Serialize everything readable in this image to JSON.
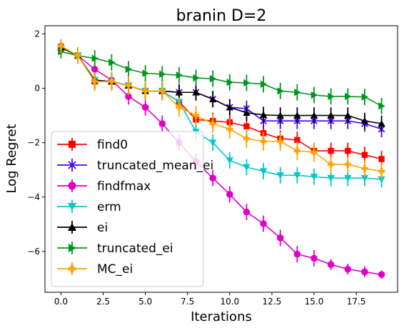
{
  "chart_data": {
    "type": "line",
    "title": "branin D=2",
    "xlabel": "Iterations",
    "ylabel": "Log Regret",
    "xlim": [
      -0.95,
      19.95
    ],
    "ylim": [
      -7.5,
      2.3
    ],
    "xticks": [
      0,
      2.5,
      5,
      7.5,
      10,
      12.5,
      15,
      17.5
    ],
    "xtick_labels": [
      "0.0",
      "2.5",
      "5.0",
      "7.5",
      "10.0",
      "12.5",
      "15.0",
      "17.5"
    ],
    "yticks": [
      2,
      0,
      -2,
      -4,
      -6
    ],
    "ytick_labels": [
      "2",
      "0",
      "−2",
      "−4",
      "−6"
    ],
    "grid": false,
    "legend_position": "lower-left",
    "x": [
      0,
      1,
      2,
      3,
      4,
      5,
      6,
      7,
      8,
      9,
      10,
      11,
      12,
      13,
      14,
      15,
      16,
      17,
      18,
      19
    ],
    "series": [
      {
        "name": "find0",
        "color": "#ff0000",
        "marker": "square",
        "values": [
          1.5,
          1.2,
          0.25,
          0.25,
          0.1,
          -0.1,
          -0.1,
          -0.5,
          -1.15,
          -1.2,
          -1.25,
          -1.4,
          -1.65,
          -1.85,
          -1.9,
          -2.3,
          -2.3,
          -2.3,
          -2.45,
          -2.6
        ],
        "errors": [
          0.25,
          0.3,
          0.3,
          0.3,
          0.3,
          0.3,
          0.3,
          0.3,
          0.3,
          0.3,
          0.3,
          0.3,
          0.3,
          0.3,
          0.3,
          0.3,
          0.3,
          0.3,
          0.3,
          0.3
        ]
      },
      {
        "name": "truncated_mean_ei",
        "color": "#4b00ff",
        "marker": "x",
        "values": [
          1.5,
          1.2,
          0.3,
          0.25,
          0.1,
          -0.1,
          -0.1,
          -0.15,
          -0.15,
          -0.4,
          -0.7,
          -0.75,
          -1.2,
          -1.2,
          -1.2,
          -1.2,
          -1.2,
          -1.2,
          -1.3,
          -1.5
        ],
        "errors": [
          0.25,
          0.3,
          0.3,
          0.3,
          0.3,
          0.3,
          0.3,
          0.3,
          0.3,
          0.3,
          0.3,
          0.3,
          0.3,
          0.3,
          0.3,
          0.3,
          0.3,
          0.3,
          0.3,
          0.3
        ]
      },
      {
        "name": "findfmax",
        "color": "#e000c8",
        "marker": "circle",
        "values": [
          1.55,
          1.2,
          0.7,
          0.3,
          -0.3,
          -0.7,
          -1.3,
          -2.0,
          -2.7,
          -3.3,
          -3.9,
          -4.55,
          -4.98,
          -5.5,
          -6.1,
          -6.25,
          -6.48,
          -6.65,
          -6.75,
          -6.85
        ],
        "errors": [
          0.25,
          0.3,
          0.3,
          0.3,
          0.3,
          0.3,
          0.3,
          0.3,
          0.3,
          0.3,
          0.3,
          0.3,
          0.3,
          0.3,
          0.3,
          0.3,
          0.2,
          0.2,
          0.2,
          0.15
        ]
      },
      {
        "name": "erm",
        "color": "#00c8c8",
        "marker": "triangle-down",
        "values": [
          1.5,
          1.2,
          0.3,
          0.25,
          0.1,
          -0.1,
          -0.1,
          -0.5,
          -1.6,
          -2.0,
          -2.65,
          -2.9,
          -3.05,
          -3.2,
          -3.2,
          -3.25,
          -3.3,
          -3.3,
          -3.3,
          -3.35
        ],
        "errors": [
          0.25,
          0.3,
          0.3,
          0.3,
          0.3,
          0.3,
          0.3,
          0.3,
          0.3,
          0.3,
          0.3,
          0.3,
          0.3,
          0.3,
          0.3,
          0.3,
          0.3,
          0.3,
          0.3,
          0.3
        ]
      },
      {
        "name": "ei",
        "color": "#000000",
        "marker": "triangle-up",
        "values": [
          1.5,
          1.2,
          0.3,
          0.25,
          0.1,
          -0.1,
          -0.1,
          -0.15,
          -0.15,
          -0.4,
          -0.7,
          -0.9,
          -0.98,
          -1.0,
          -1.0,
          -1.0,
          -1.0,
          -1.0,
          -1.2,
          -1.3
        ],
        "errors": [
          0.25,
          0.3,
          0.3,
          0.3,
          0.3,
          0.3,
          0.3,
          0.3,
          0.3,
          0.3,
          0.3,
          0.3,
          0.3,
          0.3,
          0.3,
          0.3,
          0.3,
          0.3,
          0.3,
          0.3
        ]
      },
      {
        "name": "truncated_ei",
        "color": "#00961e",
        "marker": "triangle-right",
        "values": [
          1.35,
          1.2,
          1.1,
          0.95,
          0.7,
          0.55,
          0.52,
          0.48,
          0.38,
          0.35,
          0.22,
          0.2,
          0.15,
          -0.1,
          -0.15,
          -0.25,
          -0.3,
          -0.3,
          -0.32,
          -0.65
        ],
        "errors": [
          0.25,
          0.3,
          0.3,
          0.3,
          0.3,
          0.3,
          0.3,
          0.3,
          0.3,
          0.3,
          0.3,
          0.3,
          0.3,
          0.3,
          0.3,
          0.3,
          0.3,
          0.3,
          0.3,
          0.3
        ]
      },
      {
        "name": "MC_ei",
        "color": "#ffa500",
        "marker": "plus-filled",
        "values": [
          1.55,
          1.2,
          0.25,
          0.25,
          0.1,
          -0.1,
          -0.1,
          -0.7,
          -1.0,
          -1.3,
          -1.5,
          -1.85,
          -1.95,
          -1.95,
          -2.3,
          -2.35,
          -2.8,
          -2.8,
          -2.95,
          -3.05
        ],
        "errors": [
          0.25,
          0.3,
          0.35,
          0.35,
          0.35,
          0.35,
          0.35,
          0.35,
          0.35,
          0.35,
          0.35,
          0.35,
          0.35,
          0.35,
          0.35,
          0.35,
          0.3,
          0.3,
          0.3,
          0.3
        ]
      }
    ]
  }
}
